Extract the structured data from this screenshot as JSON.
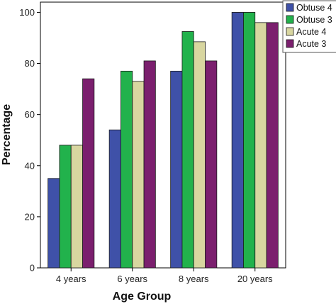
{
  "chart_data": {
    "type": "bar",
    "title": "",
    "xlabel": "Age Group",
    "ylabel": "Percentage",
    "categories": [
      "4 years",
      "6 years",
      "8 years",
      "20 years"
    ],
    "ylim": [
      0,
      104
    ],
    "yticks": [
      "0",
      "20",
      "40",
      "60",
      "80",
      "100"
    ],
    "grid": false,
    "legend_position": "top-right",
    "series": [
      {
        "name": "Obtuse 4",
        "color": "#3f51a8",
        "values": [
          35,
          54,
          77,
          100
        ]
      },
      {
        "name": "Obtuse 3",
        "color": "#22b24c",
        "values": [
          48,
          77,
          92.5,
          100
        ]
      },
      {
        "name": "Acute 4",
        "color": "#d8d6a0",
        "values": [
          48,
          73,
          88.5,
          96
        ]
      },
      {
        "name": "Acute 3",
        "color": "#7b1f6e",
        "values": [
          74,
          81,
          81,
          96
        ]
      }
    ]
  }
}
